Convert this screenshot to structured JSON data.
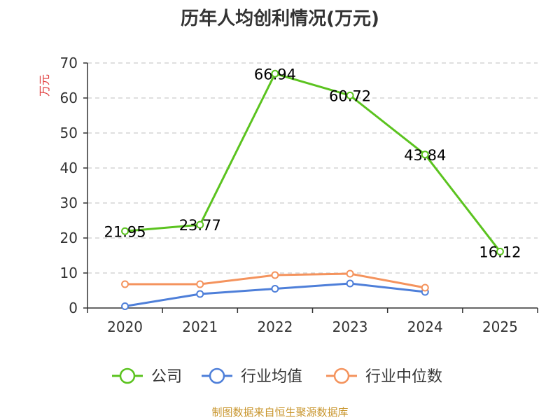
{
  "chart_data": {
    "type": "line",
    "title": "历年人均创利情况(万元)",
    "ylabel": "万元",
    "categories": [
      "2020",
      "2021",
      "2022",
      "2023",
      "2024",
      "2025"
    ],
    "ylim": [
      0,
      70
    ],
    "yticks": [
      "0",
      "10",
      "20",
      "30",
      "40",
      "50",
      "60",
      "70"
    ],
    "grid": true,
    "legend_position": "bottom",
    "series": [
      {
        "name": "公司",
        "color": "#5bc31f",
        "values": [
          21.95,
          23.77,
          66.94,
          60.72,
          43.84,
          16.12
        ],
        "labels": [
          "21.95",
          "23.77",
          "66.94",
          "60.72",
          "43.84",
          "16.12"
        ]
      },
      {
        "name": "行业均值",
        "color": "#4e7fd9",
        "values": [
          0.5,
          4.0,
          5.5,
          7.0,
          4.6,
          null
        ]
      },
      {
        "name": "行业中位数",
        "color": "#f4935d",
        "values": [
          6.8,
          6.8,
          9.4,
          9.8,
          5.8,
          null
        ]
      }
    ]
  },
  "footer": {
    "source": "制图数据来自恒生聚源数据库",
    "source_color": "#c8952c"
  },
  "colors": {
    "axis": "#333333",
    "grid": "#cccccc",
    "ylabel": "#e03b3b"
  }
}
